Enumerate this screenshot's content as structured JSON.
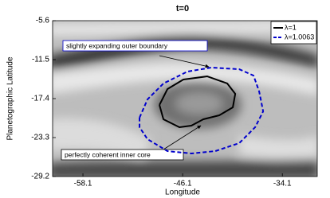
{
  "chart_data": {
    "type": "line",
    "title": "t=0",
    "x_label": "Longitude",
    "y_label": "Planetographic Latitude",
    "xlim": [
      -61.75,
      -29.9
    ],
    "ylim": [
      -29.2,
      -5.6
    ],
    "xticks": [
      -58.1,
      -46.1,
      -34.1
    ],
    "yticks": [
      -29.2,
      -23.3,
      -17.4,
      -11.5,
      -5.6
    ],
    "legend": "upper right",
    "annotations": [
      "slightly expanding outer boundary",
      "perfectly coherent inner core"
    ],
    "series": [
      {
        "name": "λ=1",
        "color": "#000000",
        "dash": false,
        "x": [
          -48.89,
          -47.93,
          -46.01,
          -43.13,
          -40.73,
          -39.77,
          -40.06,
          -41.69,
          -43.61,
          -45.05,
          -46.49,
          -48.41,
          -48.89
        ],
        "values": [
          -18.36,
          -15.96,
          -14.51,
          -14.03,
          -15.11,
          -16.68,
          -18.72,
          -19.93,
          -20.53,
          -21.49,
          -21.73,
          -20.53,
          -18.36
        ]
      },
      {
        "name": "λ=1.0063",
        "color": "#0000cc",
        "dash": true,
        "x": [
          -51.29,
          -50.33,
          -48.41,
          -45.53,
          -42.65,
          -39.29,
          -37.57,
          -36.89,
          -36.41,
          -37.37,
          -39.29,
          -42.17,
          -45.05,
          -47.93,
          -50.33,
          -51.29,
          -51.29
        ],
        "values": [
          -20.29,
          -17.52,
          -15.11,
          -13.31,
          -12.7,
          -12.95,
          -13.91,
          -16.32,
          -19.33,
          -21.73,
          -24.14,
          -25.35,
          -25.71,
          -25.35,
          -23.54,
          -21.73,
          -20.29
        ]
      }
    ]
  }
}
